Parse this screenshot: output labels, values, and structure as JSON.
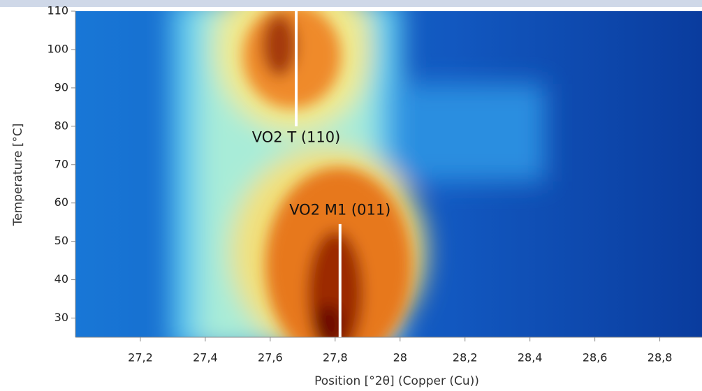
{
  "chart_data": {
    "type": "heatmap",
    "x_label": "Position [°2θ] (Copper (Cu))",
    "y_label": "Temperature [°C]",
    "xlim": [
      27.0,
      28.93
    ],
    "ylim": [
      25,
      110
    ],
    "xticks": [
      {
        "value": 27.2,
        "label": "27,2"
      },
      {
        "value": 27.4,
        "label": "27,4"
      },
      {
        "value": 27.6,
        "label": "27,6"
      },
      {
        "value": 27.8,
        "label": "27,8"
      },
      28,
      {
        "value": 28.2,
        "label": "28,2"
      },
      {
        "value": 28.4,
        "label": "28,4"
      },
      {
        "value": 28.6,
        "label": "28,6"
      },
      {
        "value": 28.8,
        "label": "28,8"
      }
    ],
    "yticks": [
      30,
      40,
      50,
      60,
      70,
      80,
      90,
      100,
      110
    ],
    "annotations": [
      {
        "text": "VO2 T (110)",
        "x": 27.68,
        "y_range": [
          80,
          110
        ],
        "text_y": 77
      },
      {
        "text": "VO2 M1 (011)",
        "x": 27.815,
        "y_range": [
          25,
          54.5
        ],
        "text_y": 58
      }
    ]
  }
}
